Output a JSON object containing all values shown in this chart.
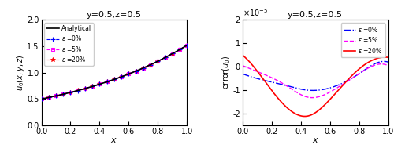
{
  "title": "y=0.5,z=0.5",
  "left_ylabel": "$u_0(x,y,z)$",
  "right_ylabel": "$\\mathrm{error}(u_0)$",
  "xlabel": "$x$",
  "xlim": [
    0,
    1
  ],
  "left_ylim": [
    0,
    2
  ],
  "right_ylim": [
    -2.5e-05,
    2e-05
  ],
  "analytical_color": "#000000",
  "colors_0": "#0000FF",
  "colors_5": "#FF00FF",
  "colors_20": "#FF0000",
  "legend_analytical": "Analytical",
  "legend_0": "$\\varepsilon$ =0%",
  "legend_5": "$\\varepsilon$ =5%",
  "legend_20": "$\\varepsilon$ =20%",
  "n_points": 200,
  "n_markers": 21
}
